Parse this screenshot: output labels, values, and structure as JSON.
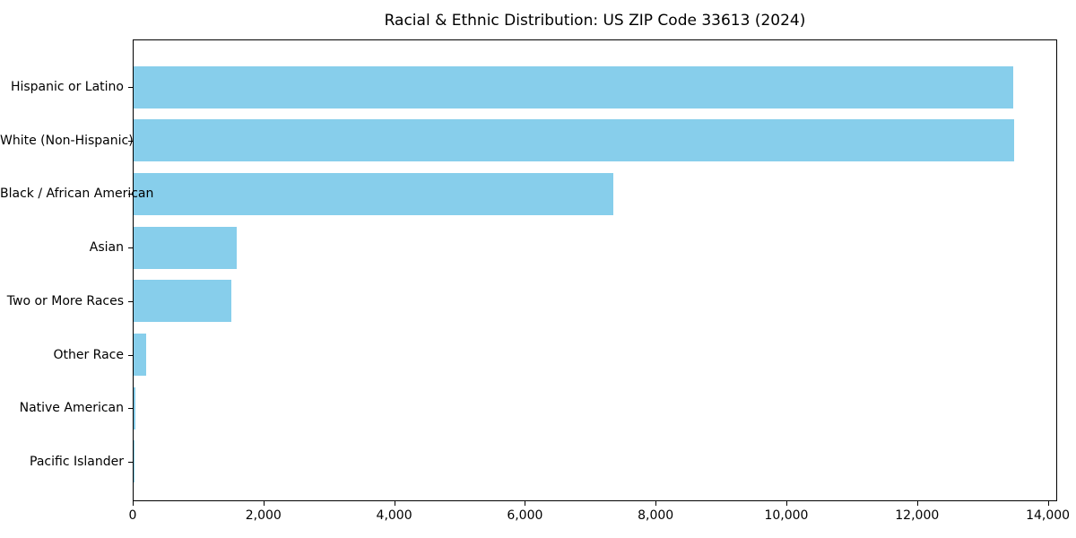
{
  "chart_data": {
    "type": "bar",
    "orientation": "horizontal",
    "title": "Racial & Ethnic Distribution: US ZIP Code 33613 (2024)",
    "categories": [
      "Hispanic or Latino",
      "White (Non-Hispanic)",
      "Black / African American",
      "Asian",
      "Two or More Races",
      "Other Race",
      "Native American",
      "Pacific Islander"
    ],
    "values": [
      13455,
      13470,
      7335,
      1580,
      1495,
      190,
      25,
      5
    ],
    "xlabel": "",
    "ylabel": "",
    "xlim": [
      0,
      14143
    ],
    "xticks": [
      0,
      2000,
      4000,
      6000,
      8000,
      10000,
      12000,
      14000
    ],
    "grid": false,
    "legend": null,
    "bar_color": "#87CEEB",
    "axis_color": "#000000",
    "text_color": "#000000"
  }
}
